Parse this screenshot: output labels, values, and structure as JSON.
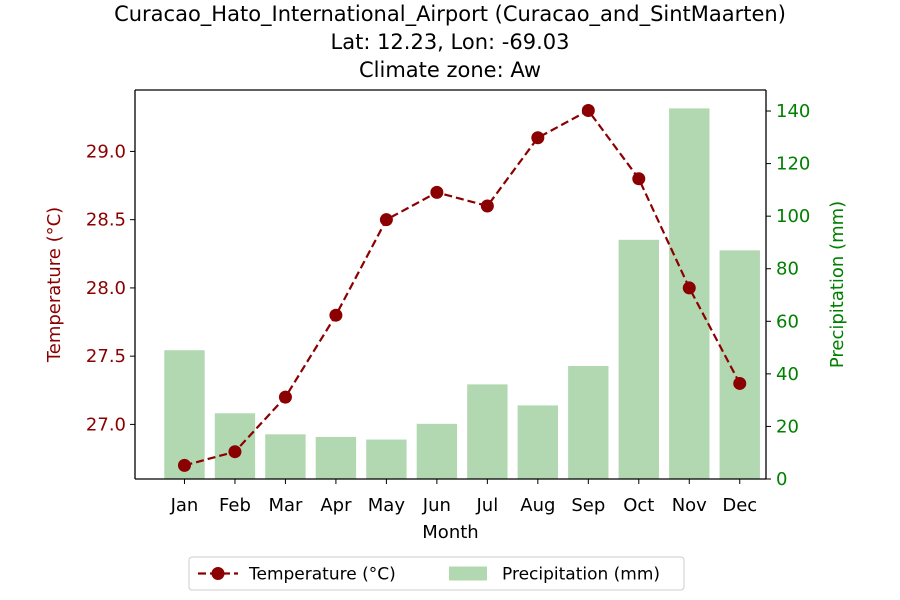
{
  "chart_data": {
    "type": "bar+line",
    "title": "Curacao_Hato_International_Airport (Curacao_and_SintMaarten)",
    "subtitle_1": "Lat: 12.23, Lon: -69.03",
    "subtitle_2": "Climate zone: Aw",
    "xlabel": "Month",
    "ylabel_left": "Temperature (°C)",
    "ylabel_right": "Precipitation (mm)",
    "categories": [
      "Jan",
      "Feb",
      "Mar",
      "Apr",
      "May",
      "Jun",
      "Jul",
      "Aug",
      "Sep",
      "Oct",
      "Nov",
      "Dec"
    ],
    "series": [
      {
        "name": "Temperature (°C)",
        "axis": "left",
        "style": "dashed line with circle markers",
        "color": "#8b0000",
        "values": [
          26.7,
          26.8,
          27.2,
          27.8,
          28.5,
          28.7,
          28.6,
          29.1,
          29.3,
          28.8,
          28.0,
          27.3
        ]
      },
      {
        "name": "Precipitation (mm)",
        "axis": "right",
        "style": "bar",
        "color": "#b2d8b2",
        "values": [
          49,
          25,
          17,
          16,
          15,
          21,
          36,
          28,
          43,
          91,
          141,
          87
        ]
      }
    ],
    "ylim_left": [
      26.6,
      29.45
    ],
    "yticks_left": [
      "27.0",
      "27.5",
      "28.0",
      "28.5",
      "29.0"
    ],
    "ylim_right": [
      0,
      148
    ],
    "yticks_right": [
      "0",
      "20",
      "40",
      "60",
      "80",
      "100",
      "120",
      "140"
    ],
    "left_axis_color": "#8b0000",
    "right_axis_color": "#008000",
    "legend_placement": "bottom-center",
    "grid": false
  }
}
